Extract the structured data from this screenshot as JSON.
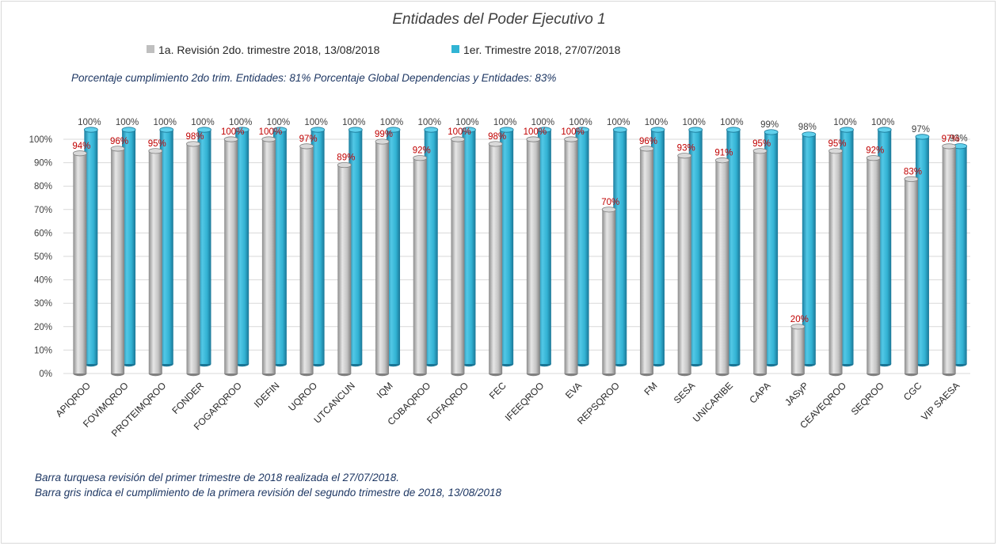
{
  "chart_data": {
    "type": "bar",
    "title": "Entidades del Poder Ejecutivo 1",
    "categories": [
      "APIQROO",
      "FOVIMQROO",
      "PROTEIMQROO",
      "FONDER",
      "FOGARQROO",
      "IDEFIN",
      "UQROO",
      "UTCANCUN",
      "IQM",
      "COBAQROO",
      "FOFAQROO",
      "FEC",
      "IFEEQROO",
      "EVA",
      "REPSQROO",
      "FM",
      "SESA",
      "UNICARIBE",
      "CAPA",
      "JASyP",
      "CEAVEQROO",
      "SEQROO",
      "CGC",
      "VIP SAESA"
    ],
    "series": [
      {
        "name": "1a. Revisión 2do. trimestre 2018, 13/08/2018",
        "color": "#bfbfbf",
        "values": [
          94,
          96,
          95,
          98,
          100,
          100,
          97,
          89,
          99,
          92,
          100,
          98,
          100,
          100,
          70,
          96,
          93,
          91,
          95,
          20,
          95,
          92,
          83,
          97
        ],
        "labels": [
          "94%",
          "96%",
          "95%",
          "98%",
          "100%",
          "100%",
          "97%",
          "89%",
          "99%",
          "92%",
          "100%",
          "98%",
          "100%",
          "100%",
          "70%",
          "96%",
          "93%",
          "91%",
          "95%",
          "20%",
          "95%",
          "92%",
          "83%",
          "97%"
        ]
      },
      {
        "name": "1er. Trimestre 2018, 27/07/2018",
        "color": "#31b4d4",
        "values": [
          100,
          100,
          100,
          100,
          100,
          100,
          100,
          100,
          100,
          100,
          100,
          100,
          100,
          100,
          100,
          100,
          100,
          100,
          99,
          98,
          100,
          100,
          97,
          93
        ],
        "labels": [
          "100%",
          "100%",
          "100%",
          "100%",
          "100%",
          "100%",
          "100%",
          "100%",
          "100%",
          "100%",
          "100%",
          "100%",
          "100%",
          "100%",
          "100%",
          "100%",
          "100%",
          "100%",
          "99%",
          "98%",
          "100%",
          "100%",
          "97%",
          "93%"
        ]
      }
    ],
    "ylim": [
      0,
      100
    ],
    "yticks": [
      "0%",
      "10%",
      "20%",
      "30%",
      "40%",
      "50%",
      "60%",
      "70%",
      "80%",
      "90%",
      "100%"
    ],
    "grid": true,
    "legend_position": "top"
  },
  "summary_line": "Porcentaje  cumplimiento  2do trim. Entidades:  81%    Porcentaje  Global  Dependencias  y Entidades:  83%",
  "notes": [
    "Barra turquesa  revisión  del  primer  trimestre  de  2018  realizada  el 27/07/2018.",
    "Barra gris indica  el cumplimiento  de la primera  revisión  del segundo  trimestre  de 2018,   13/08/2018"
  ]
}
